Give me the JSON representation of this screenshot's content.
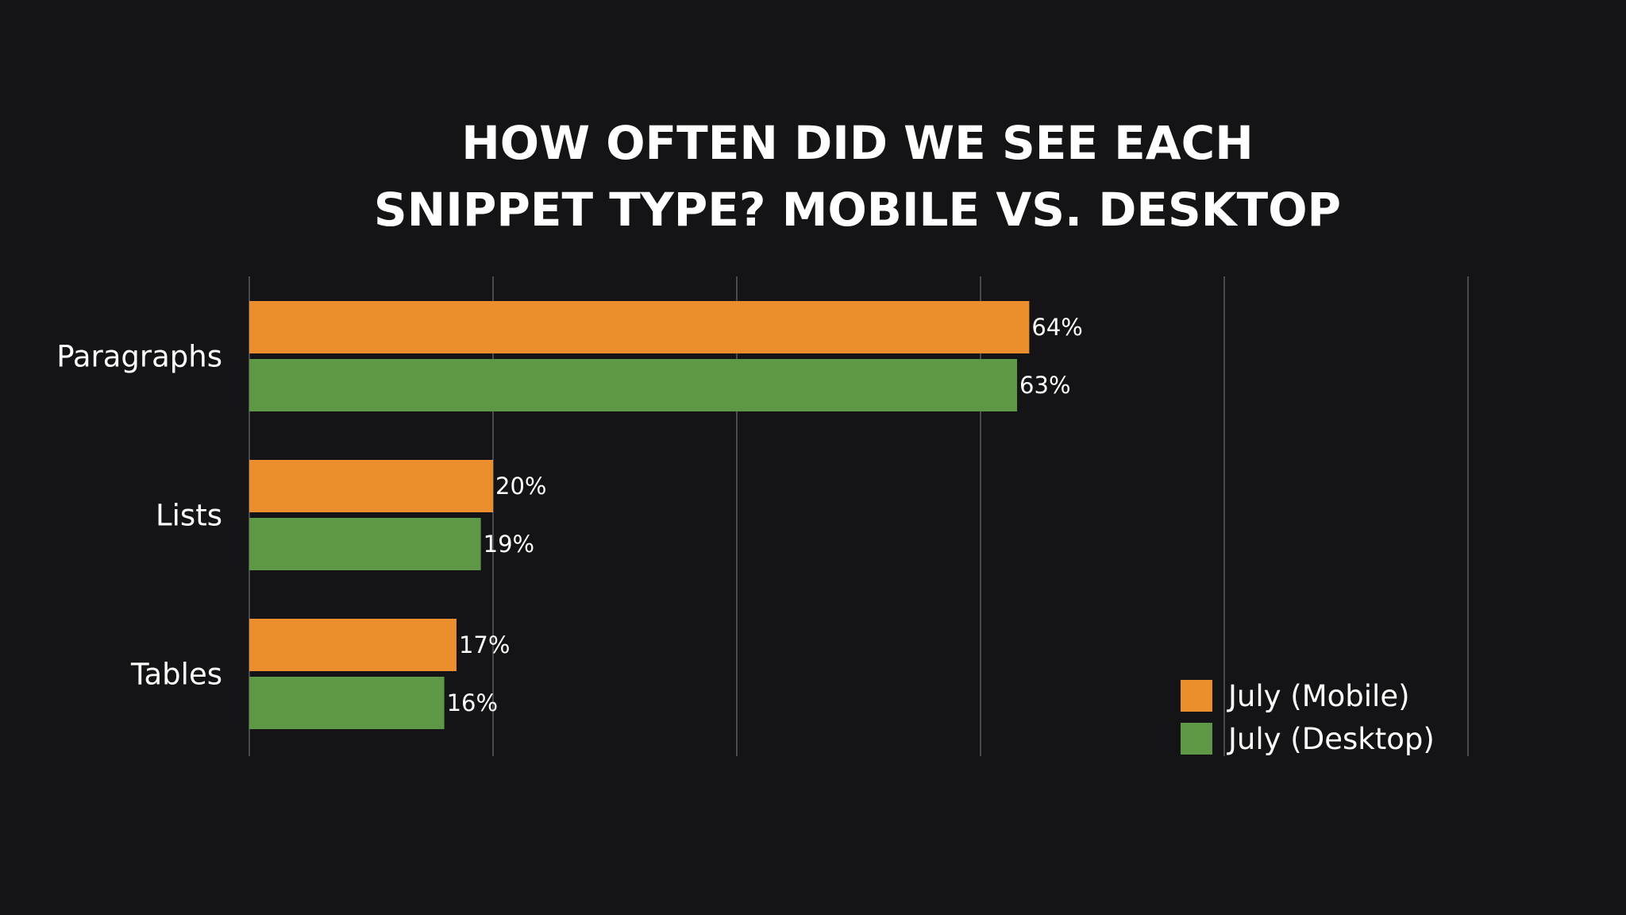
{
  "chart_data": {
    "type": "bar",
    "orientation": "horizontal",
    "title_lines": [
      "HOW OFTEN DID WE SEE EACH",
      "SNIPPET TYPE? MOBILE VS. DESKTOP"
    ],
    "categories": [
      "Paragraphs",
      "Lists",
      "Tables"
    ],
    "series": [
      {
        "name": "July (Mobile)",
        "color": "#EA8E2E",
        "values": [
          64,
          20,
          17
        ],
        "labels": [
          "64%",
          "20%",
          "17%"
        ]
      },
      {
        "name": "July (Desktop)",
        "color": "#5E9746",
        "values": [
          63,
          19,
          16
        ],
        "labels": [
          "63%",
          "19%",
          "16%"
        ]
      }
    ],
    "xlim": [
      0,
      100
    ],
    "grid": true,
    "legend": "bottom-right",
    "colors": {
      "background": "#141416",
      "grid": "#4a4a4c"
    }
  }
}
